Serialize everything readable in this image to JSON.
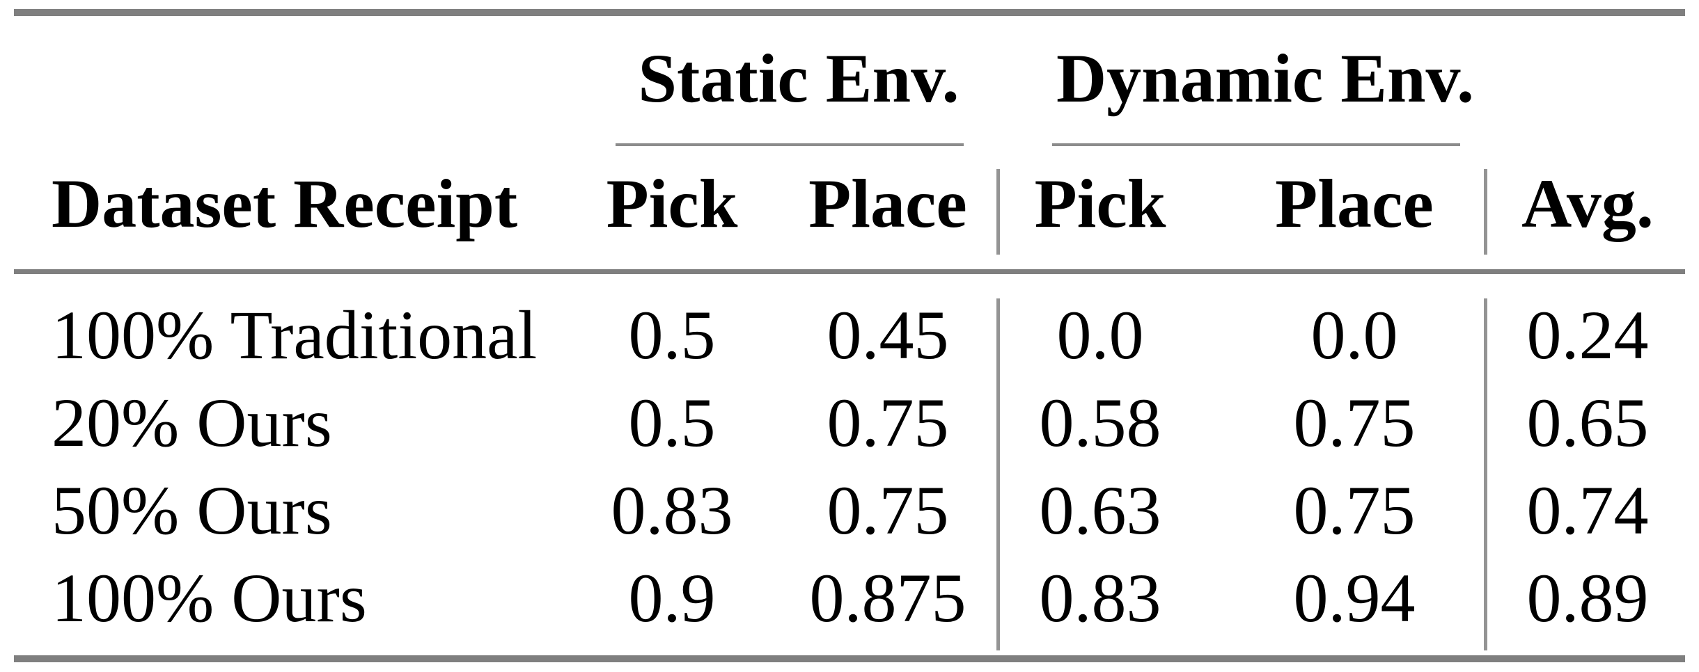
{
  "table": {
    "group_headers": {
      "static": "Static Env.",
      "dynamic": "Dynamic Env."
    },
    "columns": {
      "dataset": "Dataset Receipt",
      "static_pick": "Pick",
      "static_place": "Place",
      "dynamic_pick": "Pick",
      "dynamic_place": "Place",
      "avg": "Avg."
    },
    "rows": [
      {
        "cells": [
          "100% Traditional",
          "0.5",
          "0.45",
          "0.0",
          "0.0",
          "0.24"
        ]
      },
      {
        "cells": [
          "20% Ours",
          "0.5",
          "0.75",
          "0.58",
          "0.75",
          "0.65"
        ]
      },
      {
        "cells": [
          "50% Ours",
          "0.83",
          "0.75",
          "0.63",
          "0.75",
          "0.74"
        ]
      },
      {
        "cells": [
          "100% Ours",
          "0.9",
          "0.875",
          "0.83",
          "0.94",
          "0.89"
        ]
      }
    ],
    "rule_color": "#7f7f7f",
    "separator_color": "#949494",
    "text_color": "#000000"
  },
  "chart_data": {
    "type": "table",
    "title": "",
    "column_groups": [
      "Static Env.",
      "Dynamic Env."
    ],
    "columns": [
      "Dataset Receipt",
      "Static Env. Pick",
      "Static Env. Place",
      "Dynamic Env. Pick",
      "Dynamic Env. Place",
      "Avg."
    ],
    "rows": [
      [
        "100% Traditional",
        0.5,
        0.45,
        0.0,
        0.0,
        0.24
      ],
      [
        "20% Ours",
        0.5,
        0.75,
        0.58,
        0.75,
        0.65
      ],
      [
        "50% Ours",
        0.83,
        0.75,
        0.63,
        0.75,
        0.74
      ],
      [
        "100% Ours",
        0.9,
        0.875,
        0.83,
        0.94,
        0.89
      ]
    ]
  }
}
